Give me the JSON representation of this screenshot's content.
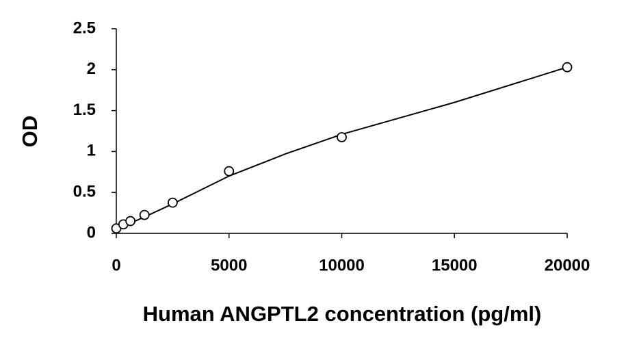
{
  "chart_data": {
    "type": "scatter",
    "x_label": "Human ANGPTL2 concentration (pg/ml)",
    "y_label": "OD",
    "x": [
      0,
      312.5,
      625,
      1250,
      2500,
      5000,
      10000,
      20000
    ],
    "values": [
      0.06,
      0.11,
      0.15,
      0.225,
      0.375,
      0.76,
      1.175,
      2.03
    ],
    "color": "#000000",
    "curve": {
      "x": [
        0,
        1250,
        2500,
        5000,
        7500,
        10000,
        15000,
        20000
      ],
      "values": [
        0.05,
        0.2,
        0.36,
        0.7,
        0.97,
        1.21,
        1.6,
        2.03
      ]
    },
    "xlim": [
      0,
      20000
    ],
    "xticks": [
      0,
      5000,
      10000,
      15000,
      20000
    ],
    "ylim": [
      0,
      2.5
    ],
    "yticks": [
      0,
      0.5,
      1,
      1.5,
      2,
      2.5
    ],
    "grid": false
  }
}
